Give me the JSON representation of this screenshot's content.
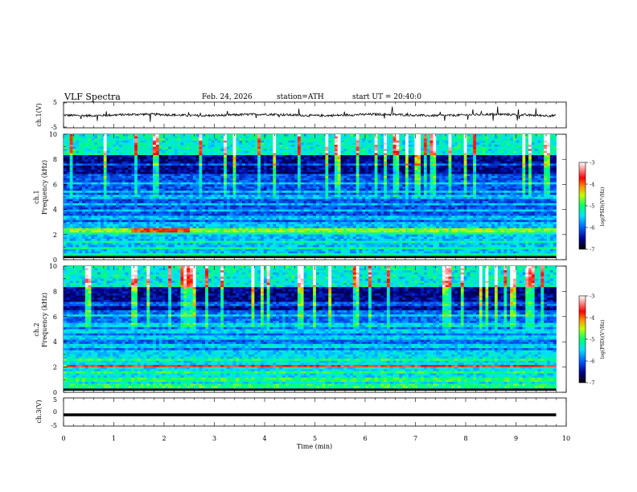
{
  "header": {
    "title": "VLF Spectra",
    "date": "Feb. 24, 2026",
    "station": "station=ATH",
    "start": "start UT =  20:40:0"
  },
  "chart_data": {
    "type": "heatmap",
    "xlabel": "Time (min)",
    "xlim": [
      0,
      10
    ],
    "x_ticks": [
      "0",
      "1",
      "2",
      "3",
      "4",
      "5",
      "6",
      "7",
      "8",
      "9",
      "10"
    ],
    "data_extent_min": 9.8,
    "panels": [
      {
        "id": "ch1-waveform",
        "type": "line",
        "ylabel": "ch.1(V)",
        "ylim": [
          -5,
          5
        ],
        "y_ticks": [
          "5",
          "-5"
        ],
        "baseline_v": 0
      },
      {
        "id": "ch1-spectrogram",
        "type": "heatmap",
        "ylabel_top": "ch.1",
        "ylabel": "Frequency (kHz)",
        "ylim": [
          0,
          10
        ],
        "y_ticks": [
          "0",
          "2",
          "4",
          "6",
          "8",
          "10"
        ],
        "colorbar": {
          "label": "log(PSD)(V²/Hz)",
          "range": [
            -7,
            -3
          ],
          "ticks": [
            "-3",
            "-4",
            "-5",
            "-6",
            "-7"
          ]
        },
        "bands_khz": [
          0.3,
          0.9,
          1.4,
          2.2,
          2.4,
          3.3,
          3.9,
          4.4,
          5.0,
          5.4,
          6.1,
          6.7,
          7.6
        ],
        "hot_band_khz": 2.35
      },
      {
        "id": "ch2-spectrogram",
        "type": "heatmap",
        "ylabel_top": "ch.2",
        "ylabel": "Frequency (kHz)",
        "ylim": [
          0,
          10
        ],
        "y_ticks": [
          "0",
          "2",
          "4",
          "6",
          "8",
          "10"
        ],
        "colorbar": {
          "label": "log(PSD)(V²/Hz)",
          "range": [
            -7,
            -3
          ],
          "ticks": [
            "-3",
            "-4",
            "-5",
            "-6",
            "-7"
          ]
        },
        "bands_khz": [
          0.5,
          1.0,
          1.6,
          2.1,
          2.6,
          3.2,
          3.7,
          4.3,
          4.8,
          5.3,
          6.1,
          7.0
        ],
        "hot_band_khz": 2.1
      },
      {
        "id": "ch3-waveform",
        "type": "line",
        "ylabel": "ch.3(V)",
        "ylim": [
          -5,
          5
        ],
        "y_ticks": [
          "5",
          "0",
          "-5"
        ],
        "baseline_v": -1
      }
    ]
  }
}
